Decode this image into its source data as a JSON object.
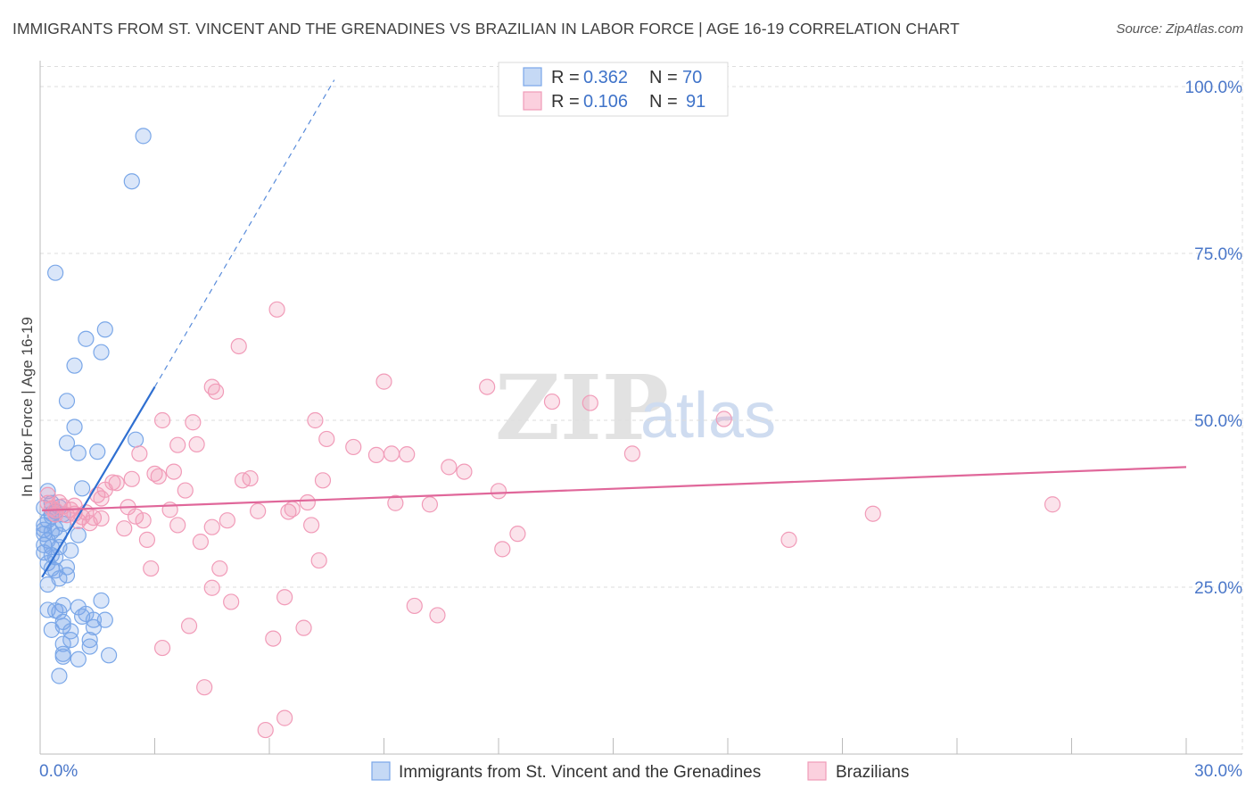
{
  "title": "IMMIGRANTS FROM ST. VINCENT AND THE GRENADINES VS BRAZILIAN IN LABOR FORCE | AGE 16-19 CORRELATION CHART",
  "source": "Source: ZipAtlas.com",
  "watermark": {
    "zip": "ZIP",
    "atlas": "atlas"
  },
  "legend": {
    "r_label": "R =",
    "n_label": "N =",
    "series": [
      {
        "r": "0.362",
        "n": "70",
        "color": "#7aa7e8"
      },
      {
        "r": "0.106",
        "n": "91",
        "color": "#f19bb8"
      }
    ]
  },
  "bottom_legend": [
    {
      "label": "Immigrants from St. Vincent and the Grenadines",
      "color": "#7aa7e8"
    },
    {
      "label": "Brazilians",
      "color": "#f19bb8"
    }
  ],
  "chart_data": {
    "type": "scatter",
    "ylabel": "In Labor Force | Age 16-19",
    "xlim": [
      0,
      30
    ],
    "ylim": [
      0,
      105
    ],
    "x_tick_labels": [
      {
        "value": 0,
        "label": "0.0%"
      },
      {
        "value": 30,
        "label": "30.0%"
      }
    ],
    "y_tick_labels": [
      {
        "value": 25,
        "label": "25.0%"
      },
      {
        "value": 50,
        "label": "50.0%"
      },
      {
        "value": 75,
        "label": "75.0%"
      },
      {
        "value": 100,
        "label": "100.0%"
      }
    ],
    "grid": true,
    "legend_position": "top-center",
    "series": [
      {
        "name": "Immigrants from St. Vincent and the Grenadines",
        "color": "#7aa7e8",
        "line_color": "#2f6fd1",
        "trend": {
          "x0": 0.05,
          "y0": 26.5,
          "x1": 3.0,
          "y1": 55.0,
          "dash_x1": 7.7,
          "dash_y1": 101.0
        },
        "points": [
          [
            2.7,
            92.6
          ],
          [
            2.4,
            85.8
          ],
          [
            0.4,
            72.1
          ],
          [
            1.7,
            63.6
          ],
          [
            1.2,
            62.2
          ],
          [
            1.6,
            60.2
          ],
          [
            0.9,
            58.2
          ],
          [
            0.7,
            52.9
          ],
          [
            0.9,
            49.0
          ],
          [
            0.7,
            46.6
          ],
          [
            2.5,
            47.1
          ],
          [
            1.0,
            45.1
          ],
          [
            1.5,
            45.3
          ],
          [
            1.1,
            39.8
          ],
          [
            0.2,
            39.4
          ],
          [
            0.3,
            37.6
          ],
          [
            0.5,
            37.0
          ],
          [
            0.1,
            36.9
          ],
          [
            0.4,
            36.3
          ],
          [
            0.6,
            35.9
          ],
          [
            0.3,
            35.6
          ],
          [
            0.1,
            34.3
          ],
          [
            0.1,
            33.6
          ],
          [
            0.3,
            33.3
          ],
          [
            0.1,
            33.0
          ],
          [
            0.5,
            32.8
          ],
          [
            1.0,
            32.8
          ],
          [
            0.2,
            32.0
          ],
          [
            0.1,
            31.3
          ],
          [
            0.3,
            31.0
          ],
          [
            0.5,
            31.0
          ],
          [
            0.1,
            30.2
          ],
          [
            0.3,
            29.8
          ],
          [
            0.4,
            29.5
          ],
          [
            0.2,
            28.6
          ],
          [
            0.7,
            28.0
          ],
          [
            0.3,
            27.8
          ],
          [
            0.4,
            27.5
          ],
          [
            0.7,
            26.8
          ],
          [
            0.5,
            26.3
          ],
          [
            1.6,
            23.0
          ],
          [
            0.6,
            22.3
          ],
          [
            1.0,
            22.0
          ],
          [
            0.2,
            21.6
          ],
          [
            0.4,
            21.5
          ],
          [
            0.5,
            21.3
          ],
          [
            1.2,
            21.0
          ],
          [
            1.1,
            20.6
          ],
          [
            1.4,
            20.1
          ],
          [
            1.7,
            20.1
          ],
          [
            0.6,
            19.8
          ],
          [
            0.6,
            19.2
          ],
          [
            1.4,
            19.0
          ],
          [
            0.3,
            18.6
          ],
          [
            0.8,
            18.4
          ],
          [
            0.8,
            17.1
          ],
          [
            1.3,
            17.1
          ],
          [
            0.6,
            16.5
          ],
          [
            1.3,
            16.1
          ],
          [
            0.6,
            15.0
          ],
          [
            0.6,
            14.6
          ],
          [
            1.0,
            14.2
          ],
          [
            1.8,
            14.8
          ],
          [
            0.5,
            11.7
          ],
          [
            0.3,
            36.0
          ],
          [
            0.2,
            35.0
          ],
          [
            0.6,
            34.5
          ],
          [
            0.4,
            33.8
          ],
          [
            0.8,
            30.5
          ],
          [
            0.2,
            25.4
          ]
        ]
      },
      {
        "name": "Brazilians",
        "color": "#f19bb8",
        "line_color": "#e0679a",
        "trend": {
          "x0": 0.05,
          "y0": 36.5,
          "x1": 30.0,
          "y1": 43.0
        },
        "points": [
          [
            6.2,
            66.6
          ],
          [
            5.2,
            61.1
          ],
          [
            9.0,
            55.8
          ],
          [
            11.7,
            55.0
          ],
          [
            4.5,
            55.0
          ],
          [
            4.6,
            54.3
          ],
          [
            13.4,
            52.8
          ],
          [
            14.4,
            52.6
          ],
          [
            17.9,
            50.2
          ],
          [
            3.2,
            50.0
          ],
          [
            4.0,
            49.7
          ],
          [
            7.2,
            50.0
          ],
          [
            7.5,
            47.2
          ],
          [
            4.1,
            46.4
          ],
          [
            3.6,
            46.3
          ],
          [
            8.2,
            46.0
          ],
          [
            8.8,
            44.8
          ],
          [
            9.2,
            45.0
          ],
          [
            9.6,
            44.9
          ],
          [
            2.6,
            45.0
          ],
          [
            15.5,
            45.0
          ],
          [
            10.7,
            43.0
          ],
          [
            11.1,
            42.3
          ],
          [
            3.5,
            42.3
          ],
          [
            3.0,
            42.0
          ],
          [
            3.1,
            41.6
          ],
          [
            5.5,
            41.3
          ],
          [
            5.3,
            41.0
          ],
          [
            7.4,
            41.0
          ],
          [
            2.4,
            41.2
          ],
          [
            1.9,
            40.7
          ],
          [
            2.0,
            40.6
          ],
          [
            1.7,
            39.6
          ],
          [
            3.8,
            39.5
          ],
          [
            12.0,
            39.4
          ],
          [
            1.5,
            38.8
          ],
          [
            1.6,
            38.3
          ],
          [
            7.0,
            37.7
          ],
          [
            9.3,
            37.6
          ],
          [
            10.2,
            37.4
          ],
          [
            26.5,
            37.4
          ],
          [
            0.2,
            38.8
          ],
          [
            0.5,
            37.7
          ],
          [
            0.6,
            37.1
          ],
          [
            2.3,
            37.0
          ],
          [
            0.8,
            36.6
          ],
          [
            3.4,
            36.6
          ],
          [
            5.7,
            36.4
          ],
          [
            6.5,
            36.3
          ],
          [
            6.6,
            36.7
          ],
          [
            21.8,
            36.0
          ],
          [
            0.9,
            36.0
          ],
          [
            0.4,
            35.9
          ],
          [
            1.1,
            35.5
          ],
          [
            1.4,
            35.4
          ],
          [
            1.6,
            35.3
          ],
          [
            2.5,
            35.6
          ],
          [
            2.7,
            35.0
          ],
          [
            4.9,
            35.0
          ],
          [
            1.3,
            34.6
          ],
          [
            3.6,
            34.3
          ],
          [
            7.1,
            34.3
          ],
          [
            4.5,
            34.0
          ],
          [
            2.2,
            33.8
          ],
          [
            12.5,
            33.0
          ],
          [
            19.6,
            32.1
          ],
          [
            2.8,
            32.1
          ],
          [
            4.2,
            31.8
          ],
          [
            12.1,
            30.7
          ],
          [
            7.3,
            29.0
          ],
          [
            2.9,
            27.8
          ],
          [
            4.7,
            27.8
          ],
          [
            6.4,
            23.5
          ],
          [
            4.5,
            24.9
          ],
          [
            5.0,
            22.8
          ],
          [
            9.8,
            22.2
          ],
          [
            10.4,
            20.8
          ],
          [
            3.9,
            19.2
          ],
          [
            6.9,
            18.9
          ],
          [
            6.1,
            17.3
          ],
          [
            3.2,
            15.9
          ],
          [
            4.3,
            10.0
          ],
          [
            5.9,
            3.6
          ],
          [
            6.4,
            5.4
          ],
          [
            0.3,
            36.8
          ],
          [
            0.7,
            35.8
          ],
          [
            1.0,
            34.9
          ],
          [
            0.2,
            37.6
          ],
          [
            0.4,
            36.5
          ],
          [
            1.2,
            36.2
          ],
          [
            0.9,
            37.2
          ]
        ]
      }
    ]
  }
}
